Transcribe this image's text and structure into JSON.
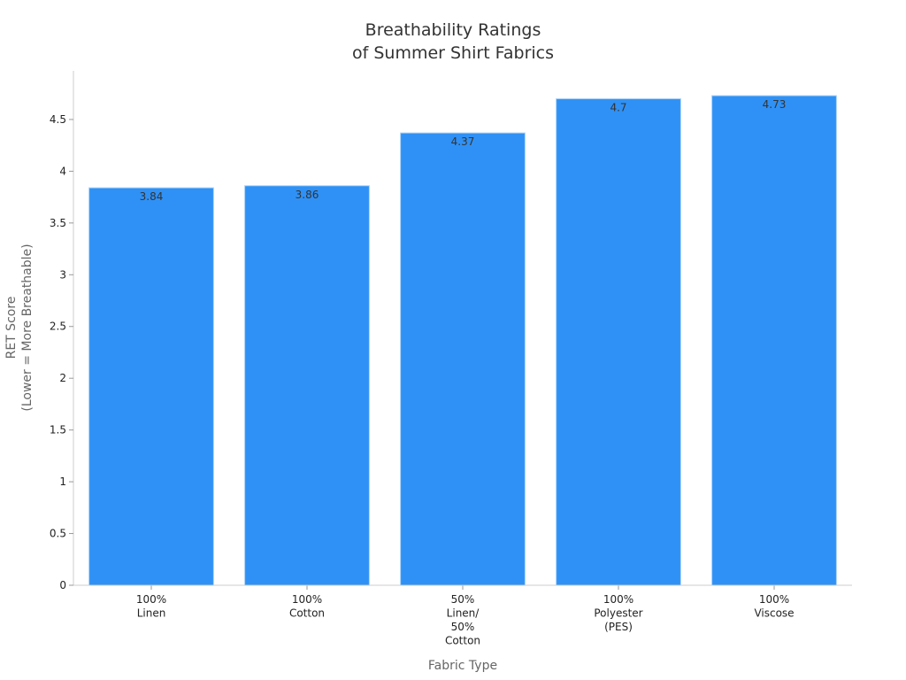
{
  "chart_data": {
    "type": "bar",
    "title": [
      "Breathability Ratings",
      "of Summer Shirt Fabrics"
    ],
    "xlabel": "Fabric Type",
    "ylabel": [
      "RET Score",
      "(Lower = More Breathable)"
    ],
    "categories": [
      [
        "100%",
        "Linen"
      ],
      [
        "100%",
        "Cotton"
      ],
      [
        "50%",
        "Linen/",
        "50%",
        "Cotton"
      ],
      [
        "100%",
        "Polyester",
        "(PES)"
      ],
      [
        "100%",
        "Viscose"
      ]
    ],
    "values": [
      3.84,
      3.86,
      4.37,
      4.7,
      4.73
    ],
    "data_labels": [
      "3.84",
      "3.86",
      "4.37",
      "4.7",
      "4.73"
    ],
    "ylim": [
      0,
      4.97
    ],
    "yticks": [
      0,
      0.5,
      1,
      1.5,
      2,
      2.5,
      3,
      3.5,
      4,
      4.5
    ],
    "ytick_labels": [
      "0",
      "0.5",
      "1",
      "1.5",
      "2",
      "2.5",
      "3",
      "3.5",
      "4",
      "4.5"
    ],
    "grid": false,
    "colors": {
      "bar": "#2f91f5",
      "bar_edge": "#a9d2f7",
      "axis": "#cccccc"
    }
  }
}
